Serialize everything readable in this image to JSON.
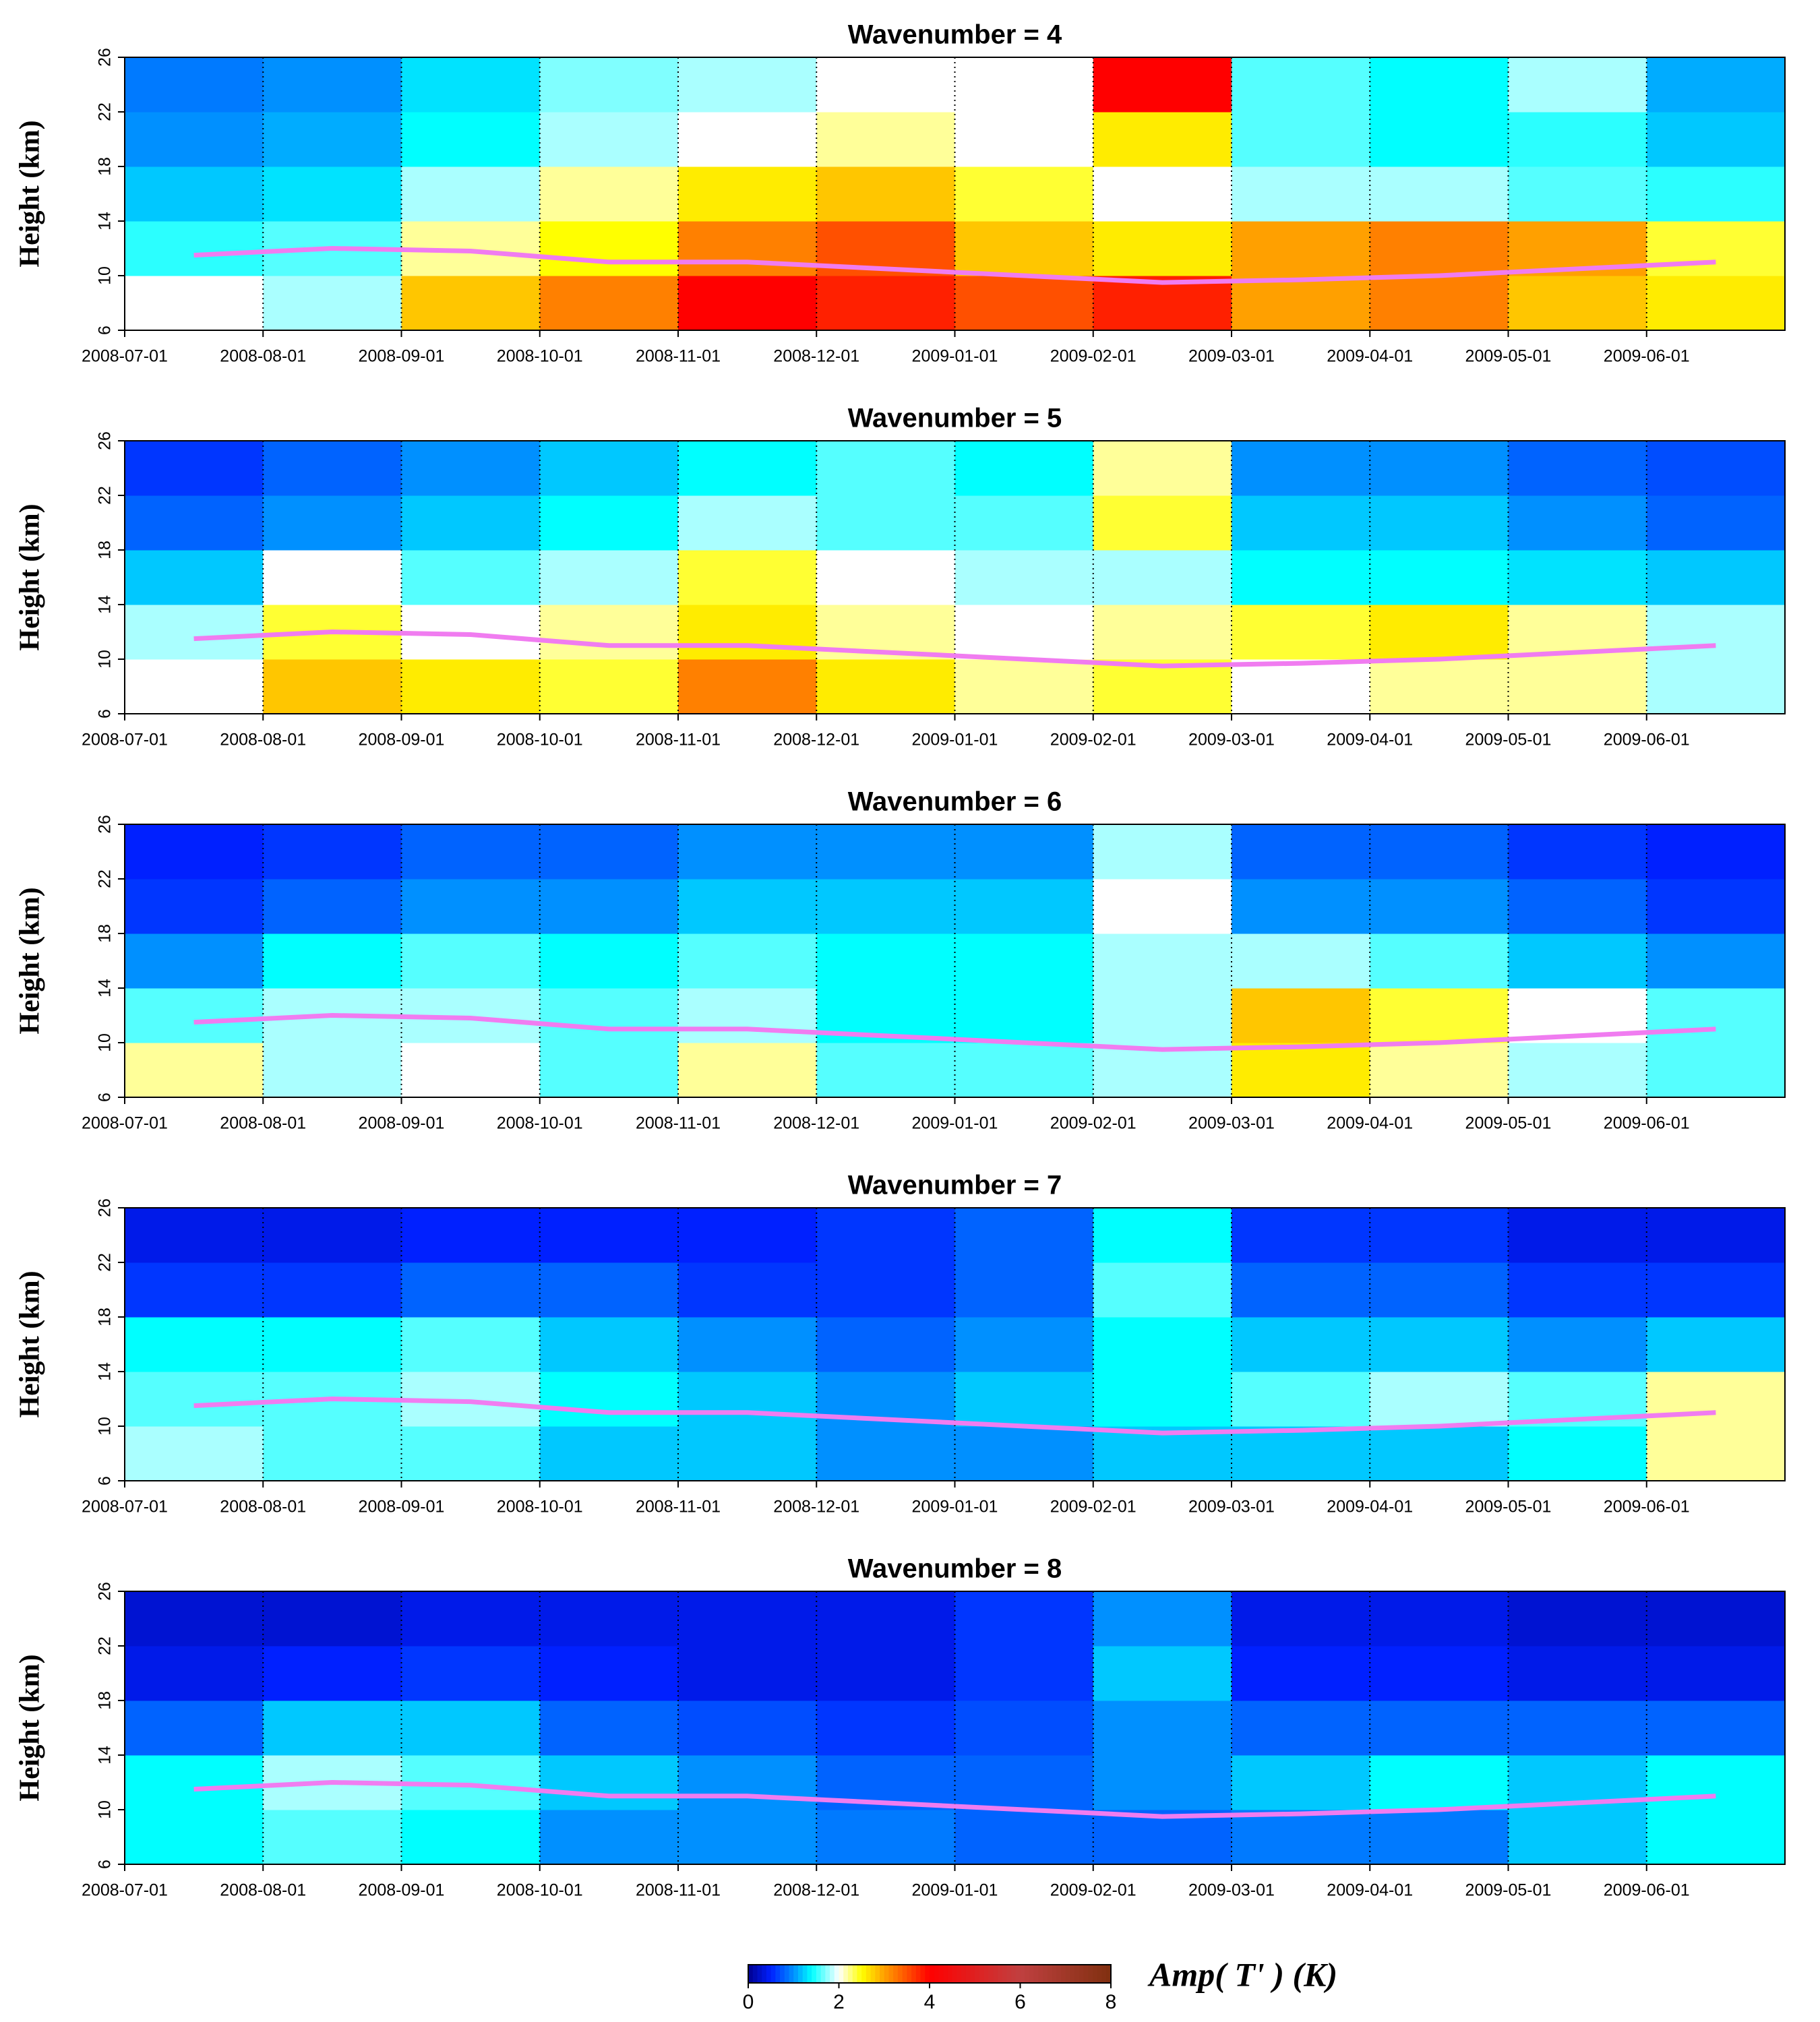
{
  "chart_data": [
    {
      "type": "heatmap",
      "title": "Wavenumber = 4",
      "ylabel": "Height (km)",
      "x": [
        "2008-07-01",
        "2008-08-01",
        "2008-09-01",
        "2008-10-01",
        "2008-11-01",
        "2008-12-01",
        "2009-01-01",
        "2009-02-01",
        "2009-03-01",
        "2009-04-01",
        "2009-05-01",
        "2009-06-01"
      ],
      "y_bins": [
        6,
        10,
        14,
        18,
        22,
        26
      ],
      "ylim": [
        6,
        26
      ],
      "yticks": [
        6,
        10,
        14,
        18,
        22,
        26
      ],
      "values": [
        [
          2.0,
          1.8,
          2.8,
          3.2,
          4.0,
          3.8,
          3.5,
          3.8,
          3.0,
          3.2,
          2.8,
          2.6
        ],
        [
          1.5,
          1.6,
          2.2,
          2.5,
          3.2,
          3.5,
          2.8,
          2.6,
          3.0,
          3.2,
          3.0,
          2.4
        ],
        [
          1.2,
          1.3,
          1.8,
          2.2,
          2.6,
          2.8,
          2.4,
          2.0,
          1.8,
          1.8,
          1.6,
          1.5
        ],
        [
          1.0,
          1.1,
          1.4,
          1.8,
          2.0,
          2.2,
          2.0,
          2.6,
          1.6,
          1.4,
          1.5,
          1.2
        ],
        [
          0.9,
          1.0,
          1.3,
          1.7,
          1.8,
          2.0,
          2.0,
          4.0,
          1.6,
          1.4,
          1.8,
          1.1
        ]
      ],
      "overlay": {
        "color": "#f07cf0",
        "values": [
          11.5,
          12,
          11.8,
          11,
          11,
          10.5,
          10,
          9.5,
          9.7,
          10,
          10.5,
          11
        ]
      }
    },
    {
      "type": "heatmap",
      "title": "Wavenumber = 5",
      "ylabel": "Height (km)",
      "x": [
        "2008-07-01",
        "2008-08-01",
        "2008-09-01",
        "2008-10-01",
        "2008-11-01",
        "2008-12-01",
        "2009-01-01",
        "2009-02-01",
        "2009-03-01",
        "2009-04-01",
        "2009-05-01",
        "2009-06-01"
      ],
      "y_bins": [
        6,
        10,
        14,
        18,
        22,
        26
      ],
      "ylim": [
        6,
        26
      ],
      "yticks": [
        6,
        10,
        14,
        18,
        22,
        26
      ],
      "values": [
        [
          2.0,
          2.8,
          2.6,
          2.4,
          3.2,
          2.6,
          2.2,
          2.4,
          2.0,
          2.2,
          2.2,
          1.8
        ],
        [
          1.8,
          2.4,
          2.0,
          2.2,
          2.6,
          2.2,
          2.0,
          2.2,
          2.4,
          2.6,
          2.2,
          1.8
        ],
        [
          1.2,
          2.0,
          1.6,
          1.8,
          2.4,
          2.0,
          1.8,
          1.8,
          1.4,
          1.4,
          1.3,
          1.2
        ],
        [
          0.8,
          1.0,
          1.2,
          1.4,
          1.8,
          1.6,
          1.6,
          2.4,
          1.2,
          1.2,
          1.0,
          0.8
        ],
        [
          0.6,
          0.8,
          1.0,
          1.2,
          1.4,
          1.6,
          1.4,
          2.2,
          1.0,
          1.0,
          0.8,
          0.7
        ]
      ],
      "overlay": {
        "color": "#f07cf0",
        "values": [
          11.5,
          12,
          11.8,
          11,
          11,
          10.5,
          10,
          9.5,
          9.7,
          10,
          10.5,
          11
        ]
      }
    },
    {
      "type": "heatmap",
      "title": "Wavenumber = 6",
      "ylabel": "Height (km)",
      "x": [
        "2008-07-01",
        "2008-08-01",
        "2008-09-01",
        "2008-10-01",
        "2008-11-01",
        "2008-12-01",
        "2009-01-01",
        "2009-02-01",
        "2009-03-01",
        "2009-04-01",
        "2009-05-01",
        "2009-06-01"
      ],
      "y_bins": [
        6,
        10,
        14,
        18,
        22,
        26
      ],
      "ylim": [
        6,
        26
      ],
      "yticks": [
        6,
        10,
        14,
        18,
        22,
        26
      ],
      "values": [
        [
          2.2,
          1.8,
          2.0,
          1.6,
          2.2,
          1.6,
          1.6,
          1.8,
          2.6,
          2.2,
          1.8,
          1.6
        ],
        [
          1.6,
          1.8,
          1.8,
          1.6,
          1.8,
          1.4,
          1.4,
          1.8,
          2.8,
          2.4,
          2.0,
          1.6
        ],
        [
          1.0,
          1.4,
          1.6,
          1.4,
          1.6,
          1.4,
          1.4,
          1.8,
          1.8,
          1.6,
          1.2,
          1.0
        ],
        [
          0.6,
          0.8,
          1.0,
          1.0,
          1.2,
          1.2,
          1.2,
          2.0,
          1.0,
          1.0,
          0.8,
          0.6
        ],
        [
          0.5,
          0.6,
          0.8,
          0.8,
          1.0,
          1.0,
          1.0,
          1.8,
          0.8,
          0.8,
          0.6,
          0.5
        ]
      ],
      "overlay": {
        "color": "#f07cf0",
        "values": [
          11.5,
          12,
          11.8,
          11,
          11,
          10.5,
          10,
          9.5,
          9.7,
          10,
          10.5,
          11
        ]
      }
    },
    {
      "type": "heatmap",
      "title": "Wavenumber = 7",
      "ylabel": "Height (km)",
      "x": [
        "2008-07-01",
        "2008-08-01",
        "2008-09-01",
        "2008-10-01",
        "2008-11-01",
        "2008-12-01",
        "2009-01-01",
        "2009-02-01",
        "2009-03-01",
        "2009-04-01",
        "2009-05-01",
        "2009-06-01"
      ],
      "y_bins": [
        6,
        10,
        14,
        18,
        22,
        26
      ],
      "ylim": [
        6,
        26
      ],
      "yticks": [
        6,
        10,
        14,
        18,
        22,
        26
      ],
      "values": [
        [
          1.8,
          1.6,
          1.6,
          1.2,
          1.2,
          1.0,
          1.0,
          1.2,
          1.2,
          1.2,
          1.4,
          2.2
        ],
        [
          1.6,
          1.6,
          1.8,
          1.4,
          1.2,
          1.0,
          1.2,
          1.4,
          1.6,
          1.8,
          1.6,
          2.2
        ],
        [
          1.4,
          1.4,
          1.6,
          1.2,
          1.0,
          0.8,
          1.0,
          1.4,
          1.2,
          1.2,
          1.0,
          1.2
        ],
        [
          0.6,
          0.6,
          0.8,
          0.8,
          0.6,
          0.6,
          0.8,
          1.6,
          0.8,
          0.8,
          0.6,
          0.6
        ],
        [
          0.4,
          0.4,
          0.5,
          0.5,
          0.5,
          0.6,
          0.8,
          1.4,
          0.6,
          0.6,
          0.4,
          0.4
        ]
      ],
      "overlay": {
        "color": "#f07cf0",
        "values": [
          11.5,
          12,
          11.8,
          11,
          11,
          10.5,
          10,
          9.5,
          9.7,
          10,
          10.5,
          11
        ]
      }
    },
    {
      "type": "heatmap",
      "title": "Wavenumber = 8",
      "ylabel": "Height (km)",
      "x": [
        "2008-07-01",
        "2008-08-01",
        "2008-09-01",
        "2008-10-01",
        "2008-11-01",
        "2008-12-01",
        "2009-01-01",
        "2009-02-01",
        "2009-03-01",
        "2009-04-01",
        "2009-05-01",
        "2009-06-01"
      ],
      "y_bins": [
        6,
        10,
        14,
        18,
        22,
        26
      ],
      "ylim": [
        6,
        26
      ],
      "yticks": [
        6,
        10,
        14,
        18,
        22,
        26
      ],
      "values": [
        [
          1.4,
          1.6,
          1.4,
          1.0,
          1.0,
          0.9,
          0.8,
          0.8,
          0.9,
          0.9,
          1.2,
          1.4
        ],
        [
          1.4,
          1.8,
          1.6,
          1.2,
          1.0,
          0.8,
          0.8,
          1.0,
          1.2,
          1.4,
          1.2,
          1.4
        ],
        [
          0.8,
          1.2,
          1.2,
          0.8,
          0.7,
          0.6,
          0.7,
          1.0,
          0.8,
          0.8,
          0.8,
          0.8
        ],
        [
          0.4,
          0.5,
          0.6,
          0.5,
          0.4,
          0.4,
          0.6,
          1.2,
          0.5,
          0.5,
          0.4,
          0.4
        ],
        [
          0.3,
          0.3,
          0.4,
          0.4,
          0.4,
          0.4,
          0.6,
          1.0,
          0.4,
          0.4,
          0.3,
          0.3
        ]
      ],
      "overlay": {
        "color": "#f07cf0",
        "values": [
          11.5,
          12,
          11.8,
          11,
          11,
          10.5,
          10,
          9.5,
          9.7,
          10,
          10.5,
          11
        ]
      }
    }
  ],
  "colorbar": {
    "label": "Amp( T' ) (K)",
    "clim": [
      0,
      8
    ],
    "ticks": [
      0,
      2,
      4,
      6,
      8
    ],
    "stops": [
      0,
      0.5,
      1,
      1.4,
      2,
      2.5,
      3,
      4,
      6,
      8
    ],
    "colors": [
      "#00008f",
      "#0020ff",
      "#0090ff",
      "#00ffff",
      "#ffffff",
      "#ffff00",
      "#ffa000",
      "#ff0000",
      "#c04040",
      "#803010"
    ]
  }
}
